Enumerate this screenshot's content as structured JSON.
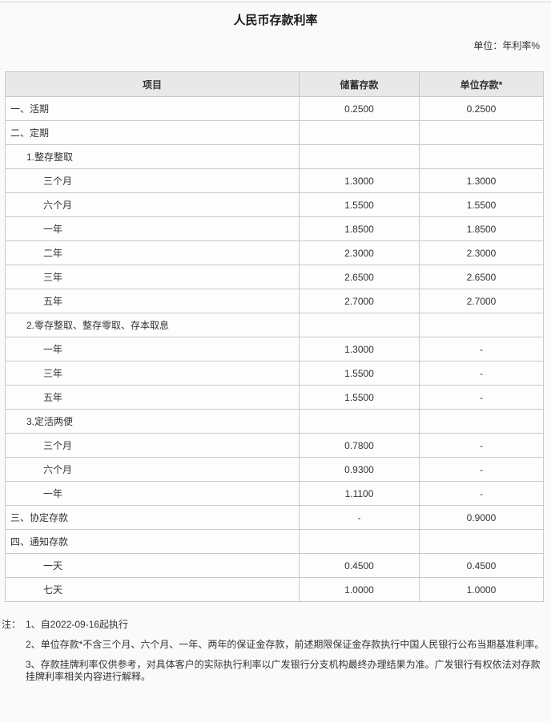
{
  "page": {
    "title": "人民币存款利率",
    "unit_label": "单位：年利率%"
  },
  "table": {
    "columns": [
      "项目",
      "储蓄存款",
      "单位存款*"
    ],
    "rows": [
      {
        "label": "一、活期",
        "indent": 0,
        "savings": "0.2500",
        "corporate": "0.2500"
      },
      {
        "label": "二、定期",
        "indent": 0,
        "savings": "",
        "corporate": ""
      },
      {
        "label": "1.整存整取",
        "indent": 1,
        "savings": "",
        "corporate": ""
      },
      {
        "label": "三个月",
        "indent": 2,
        "savings": "1.3000",
        "corporate": "1.3000"
      },
      {
        "label": "六个月",
        "indent": 2,
        "savings": "1.5500",
        "corporate": "1.5500"
      },
      {
        "label": "一年",
        "indent": 2,
        "savings": "1.8500",
        "corporate": "1.8500"
      },
      {
        "label": "二年",
        "indent": 2,
        "savings": "2.3000",
        "corporate": "2.3000"
      },
      {
        "label": "三年",
        "indent": 2,
        "savings": "2.6500",
        "corporate": "2.6500"
      },
      {
        "label": "五年",
        "indent": 2,
        "savings": "2.7000",
        "corporate": "2.7000"
      },
      {
        "label": "2.零存整取、整存零取、存本取息",
        "indent": 1,
        "savings": "",
        "corporate": ""
      },
      {
        "label": "一年",
        "indent": 2,
        "savings": "1.3000",
        "corporate": "-"
      },
      {
        "label": "三年",
        "indent": 2,
        "savings": "1.5500",
        "corporate": "-"
      },
      {
        "label": "五年",
        "indent": 2,
        "savings": "1.5500",
        "corporate": "-"
      },
      {
        "label": "3.定活两便",
        "indent": 1,
        "savings": "",
        "corporate": ""
      },
      {
        "label": "三个月",
        "indent": 2,
        "savings": "0.7800",
        "corporate": "-"
      },
      {
        "label": "六个月",
        "indent": 2,
        "savings": "0.9300",
        "corporate": "-"
      },
      {
        "label": "一年",
        "indent": 2,
        "savings": "1.1100",
        "corporate": "-"
      },
      {
        "label": "三、协定存款",
        "indent": 0,
        "savings": "-",
        "corporate": "0.9000"
      },
      {
        "label": "四、通知存款",
        "indent": 0,
        "savings": "",
        "corporate": ""
      },
      {
        "label": "一天",
        "indent": 2,
        "savings": "0.4500",
        "corporate": "0.4500"
      },
      {
        "label": "七天",
        "indent": 2,
        "savings": "1.0000",
        "corporate": "1.0000"
      }
    ]
  },
  "notes": {
    "label": "注：",
    "items": [
      "1、自2022-09-16起执行",
      "2、单位存款*不含三个月、六个月、一年、两年的保证金存款，前述期限保证金存款执行中国人民银行公布当期基准利率。",
      "3、存款挂牌利率仅供参考，对具体客户的实际执行利率以广发银行分支机构最终办理结果为准。广发银行有权依法对存款挂牌利率相关内容进行解释。"
    ]
  },
  "colors": {
    "page_bg": "#fafafa",
    "header_bg": "#e8e8e8",
    "border": "#c9c9c9",
    "text": "#333333",
    "top_line": "#d8d8d8"
  }
}
